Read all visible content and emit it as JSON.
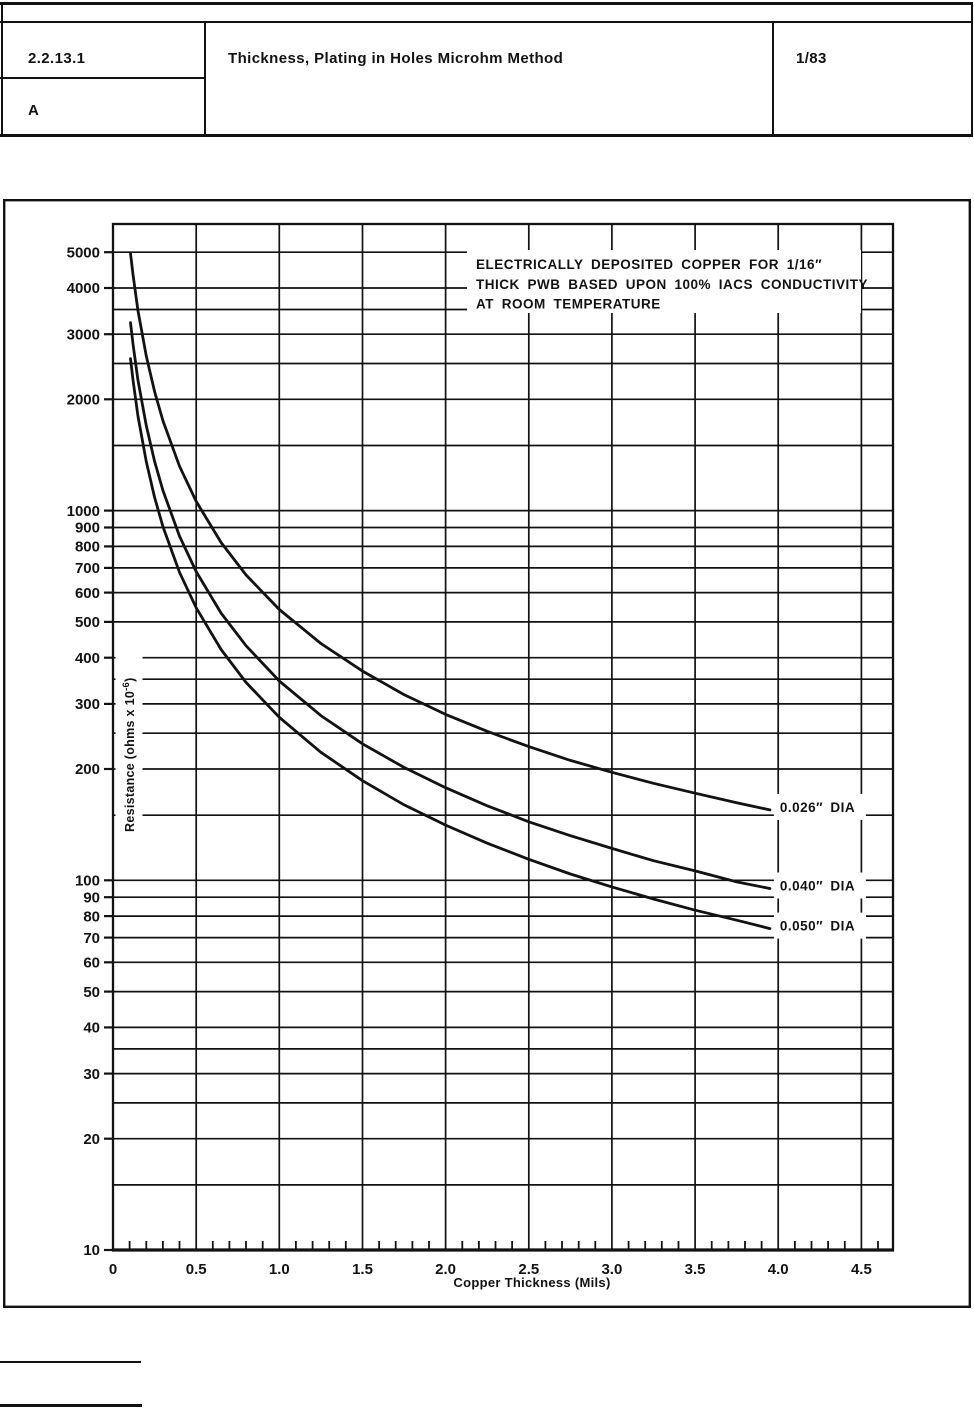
{
  "header": {
    "section_number": "2.2.13.1",
    "revision": "A",
    "title": "Thickness, Plating in Holes Microhm Method",
    "issue_date": "1/83"
  },
  "colors": {
    "ink": "#121212",
    "paper": "#ffffff"
  },
  "chart_data": {
    "type": "line",
    "title_lines": [
      "ELECTRICALLY DEPOSITED COPPER FOR 1/16″",
      "THICK PWB BASED UPON 100% IACS CONDUCTIVITY",
      "AT ROOM TEMPERATURE"
    ],
    "xlabel": "Copper Thickness (Mils)",
    "ylabel": {
      "main": "Resistance (ohms x 10",
      "superscript": "-6",
      "close": ")"
    },
    "x_scale": "linear",
    "y_scale": "log",
    "xlim": [
      0,
      4.69
    ],
    "ylim": [
      10,
      5960
    ],
    "grid": true,
    "legend_position": "end-of-line",
    "x_tick_labels": [
      "0",
      "0.5",
      "1.0",
      "1.5",
      "2.0",
      "2.5",
      "3.0",
      "3.5",
      "4.0",
      "4.5"
    ],
    "x_tick_step": 0.5,
    "x_minor_tick_step": 0.1,
    "y_tick_labels": [
      10,
      20,
      30,
      40,
      50,
      60,
      70,
      80,
      90,
      100,
      200,
      300,
      400,
      500,
      600,
      700,
      800,
      900,
      1000,
      2000,
      3000,
      4000,
      5000
    ],
    "y_gridlines": [
      15,
      20,
      25,
      30,
      35,
      40,
      50,
      60,
      70,
      80,
      90,
      100,
      150,
      200,
      250,
      300,
      350,
      400,
      500,
      600,
      700,
      800,
      900,
      1000,
      1500,
      2000,
      2500,
      3000,
      3500,
      4000,
      5000
    ],
    "x": [
      0.105,
      0.12,
      0.15,
      0.2,
      0.25,
      0.3,
      0.4,
      0.5,
      0.65,
      0.8,
      1.0,
      1.25,
      1.5,
      1.75,
      2.0,
      2.25,
      2.5,
      2.75,
      3.0,
      3.25,
      3.5,
      3.75,
      3.95
    ],
    "series": [
      {
        "name": "hole-dia-0.026-in",
        "label": "0.026″ DIA",
        "values": [
          4967,
          4349,
          3483,
          2617,
          2098,
          1752,
          1319,
          1059,
          820,
          670,
          540,
          437,
          368,
          318,
          281,
          253,
          230,
          211,
          196,
          183,
          172,
          162,
          155
        ]
      },
      {
        "name": "hole-dia-0.040-in",
        "label": "0.040″ DIA",
        "values": [
          3224,
          2822,
          2259,
          1697,
          1359,
          1134,
          853,
          684,
          528,
          431,
          346,
          279,
          234,
          202,
          178,
          159,
          144,
          132,
          122,
          113,
          106,
          99,
          95
        ]
      },
      {
        "name": "hole-dia-0.050-in",
        "label": "0.050″ DIA",
        "values": [
          2578,
          2256,
          1806,
          1356,
          1086,
          906,
          681,
          546,
          421,
          343,
          276,
          222,
          186,
          160,
          141,
          126,
          114,
          104,
          96,
          89,
          83,
          78,
          74
        ]
      }
    ]
  }
}
